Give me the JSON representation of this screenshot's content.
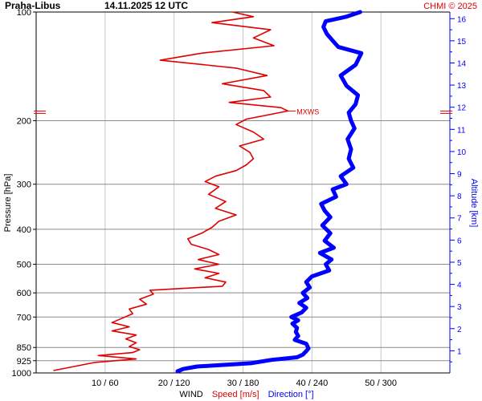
{
  "chart_data": {
    "type": "line",
    "title": "Praha-Libus",
    "subtitle": "14.11.2025 12 UTC",
    "copyright": "CHMI © 2025",
    "ylabel_left": "Pressure [hPa]",
    "ylabel_right": "Altitude [km]",
    "xlabel": {
      "wind": "WIND",
      "speed": "Speed [m/s]",
      "direction": "Direction [°]"
    },
    "pressure_ticks": [
      "100",
      "200",
      "300",
      "400",
      "500",
      "600",
      "700",
      "850",
      "925",
      "1000"
    ],
    "altitude_ticks": [
      "1",
      "2",
      "3",
      "4",
      "5",
      "6",
      "7",
      "8",
      "9",
      "10",
      "11",
      "12",
      "13",
      "14",
      "15",
      "16"
    ],
    "x_ticks": [
      "10 / 60",
      "20 / 120",
      "30 / 180",
      "40 / 240",
      "50 / 300"
    ],
    "speed_range": [
      0,
      60
    ],
    "direction_range": [
      0,
      360
    ],
    "pressure_range": [
      1000,
      100
    ],
    "altitude_range": [
      0,
      16.3
    ],
    "log_pressure_axis": true,
    "grid": true,
    "annotation": "MXWS",
    "max_wind_pressure": 188,
    "colors": {
      "speed": "#e00000",
      "direction": "#0000ff",
      "grid": "#c8c8c8",
      "copyright": "#e00000"
    },
    "series": [
      {
        "name": "Speed [m/s]",
        "unit": "m/s",
        "pressure_hpa": [
          985,
          960,
          935,
          915,
          895,
          878,
          862,
          845,
          825,
          805,
          785,
          765,
          745,
          725,
          705,
          685,
          665,
          645,
          625,
          605,
          590,
          575,
          560,
          545,
          530,
          515,
          500,
          485,
          470,
          455,
          440,
          425,
          410,
          395,
          380,
          365,
          350,
          335,
          320,
          305,
          295,
          285,
          275,
          265,
          255,
          245,
          235,
          225,
          215,
          205,
          198,
          193,
          188,
          184,
          178,
          172,
          165,
          158,
          150,
          143,
          136,
          130,
          124,
          118,
          112,
          107,
          103,
          100
        ],
        "values": [
          2.5,
          5.5,
          8.5,
          14.5,
          9.0,
          14.0,
          15.0,
          13.5,
          14.5,
          13.0,
          14.5,
          11.0,
          13.5,
          11.0,
          12.5,
          14.0,
          13.5,
          16.0,
          15.0,
          17.0,
          16.5,
          27.0,
          27.5,
          24.5,
          26.5,
          23.0,
          26.5,
          23.5,
          26.5,
          25.0,
          22.5,
          22.0,
          24.0,
          25.5,
          26.5,
          29.0,
          26.0,
          27.5,
          25.0,
          26.5,
          24.5,
          26.0,
          29.0,
          30.5,
          31.5,
          31.0,
          29.5,
          33.0,
          31.5,
          29.0,
          30.5,
          33.5,
          36.5,
          35.5,
          28.0,
          34.0,
          33.0,
          27.0,
          33.5,
          29.0,
          18.0,
          24.0,
          34.5,
          31.5,
          34.0,
          25.5,
          31.5,
          28.5
        ]
      },
      {
        "name": "Direction [°]",
        "unit": "°",
        "pressure_hpa": [
          990,
          975,
          960,
          940,
          920,
          905,
          890,
          870,
          855,
          830,
          810,
          790,
          770,
          750,
          730,
          715,
          700,
          680,
          660,
          640,
          620,
          600,
          580,
          560,
          540,
          520,
          500,
          485,
          465,
          450,
          430,
          410,
          390,
          370,
          355,
          340,
          325,
          310,
          300,
          285,
          270,
          255,
          240,
          225,
          210,
          200,
          190,
          180,
          170,
          160,
          150,
          140,
          130,
          125,
          120,
          115,
          110,
          106,
          103,
          100
        ],
        "values": [
          123,
          128,
          140,
          187,
          205,
          227,
          232,
          235,
          237,
          235,
          225,
          228,
          226,
          227,
          223,
          228,
          222,
          231,
          235,
          229,
          236,
          232,
          238,
          235,
          240,
          255,
          252,
          257,
          247,
          259,
          251,
          256,
          249,
          256,
          251,
          248,
          261,
          258,
          270,
          265,
          276,
          272,
          274,
          271,
          277,
          274,
          272,
          278,
          280,
          270,
          265,
          278,
          283,
          263,
          258,
          253,
          250,
          252,
          270,
          282
        ]
      }
    ]
  }
}
